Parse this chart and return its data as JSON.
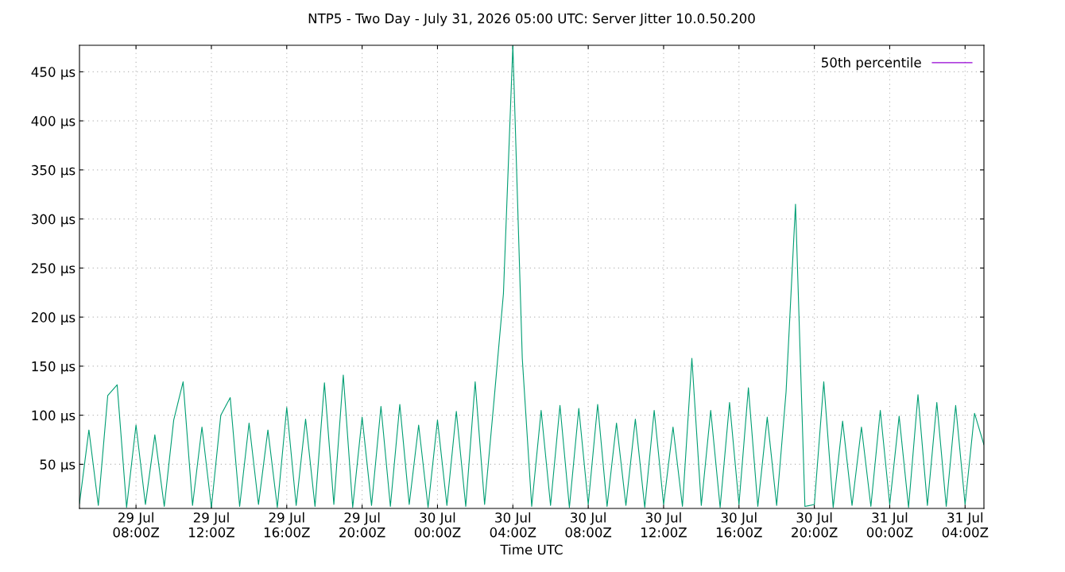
{
  "chart_data": {
    "type": "line",
    "title": "NTP5 - Two Day - July 31, 2026 05:00 UTC: Server Jitter 10.0.50.200",
    "xlabel": "Time UTC",
    "x": [
      "2026-07-29T05:00",
      "2026-07-29T05:30",
      "2026-07-29T06:00",
      "2026-07-29T06:30",
      "2026-07-29T07:00",
      "2026-07-29T07:30",
      "2026-07-29T08:00",
      "2026-07-29T08:30",
      "2026-07-29T09:00",
      "2026-07-29T09:30",
      "2026-07-29T10:00",
      "2026-07-29T10:30",
      "2026-07-29T11:00",
      "2026-07-29T11:30",
      "2026-07-29T12:00",
      "2026-07-29T12:30",
      "2026-07-29T13:00",
      "2026-07-29T13:30",
      "2026-07-29T14:00",
      "2026-07-29T14:30",
      "2026-07-29T15:00",
      "2026-07-29T15:30",
      "2026-07-29T16:00",
      "2026-07-29T16:30",
      "2026-07-29T17:00",
      "2026-07-29T17:30",
      "2026-07-29T18:00",
      "2026-07-29T18:30",
      "2026-07-29T19:00",
      "2026-07-29T19:30",
      "2026-07-29T20:00",
      "2026-07-29T20:30",
      "2026-07-29T21:00",
      "2026-07-29T21:30",
      "2026-07-29T22:00",
      "2026-07-29T22:30",
      "2026-07-29T23:00",
      "2026-07-29T23:30",
      "2026-07-30T00:00",
      "2026-07-30T00:30",
      "2026-07-30T01:00",
      "2026-07-30T01:30",
      "2026-07-30T02:00",
      "2026-07-30T02:30",
      "2026-07-30T03:00",
      "2026-07-30T03:30",
      "2026-07-30T04:00",
      "2026-07-30T04:30",
      "2026-07-30T05:00",
      "2026-07-30T05:30",
      "2026-07-30T06:00",
      "2026-07-30T06:30",
      "2026-07-30T07:00",
      "2026-07-30T07:30",
      "2026-07-30T08:00",
      "2026-07-30T08:30",
      "2026-07-30T09:00",
      "2026-07-30T09:30",
      "2026-07-30T10:00",
      "2026-07-30T10:30",
      "2026-07-30T11:00",
      "2026-07-30T11:30",
      "2026-07-30T12:00",
      "2026-07-30T12:30",
      "2026-07-30T13:00",
      "2026-07-30T13:30",
      "2026-07-30T14:00",
      "2026-07-30T14:30",
      "2026-07-30T15:00",
      "2026-07-30T15:30",
      "2026-07-30T16:00",
      "2026-07-30T16:30",
      "2026-07-30T17:00",
      "2026-07-30T17:30",
      "2026-07-30T18:00",
      "2026-07-30T18:30",
      "2026-07-30T19:00",
      "2026-07-30T19:30",
      "2026-07-30T20:00",
      "2026-07-30T20:30",
      "2026-07-30T21:00",
      "2026-07-30T21:30",
      "2026-07-30T22:00",
      "2026-07-30T22:30",
      "2026-07-30T23:00",
      "2026-07-30T23:30",
      "2026-07-31T00:00",
      "2026-07-31T00:30",
      "2026-07-31T01:00",
      "2026-07-31T01:30",
      "2026-07-31T02:00",
      "2026-07-31T02:30",
      "2026-07-31T03:00",
      "2026-07-31T03:30",
      "2026-07-31T04:00",
      "2026-07-31T04:30",
      "2026-07-31T05:00"
    ],
    "series": [
      {
        "name": "50th percentile",
        "color": "#9400d3",
        "values": [
          null,
          null,
          null,
          null,
          null,
          null,
          null,
          null,
          null,
          null,
          null,
          null,
          null,
          null,
          null,
          null,
          null,
          null,
          null,
          null,
          null,
          null,
          null,
          null,
          null,
          null,
          null,
          null,
          null,
          null,
          null,
          null,
          null,
          null,
          null,
          null,
          null,
          null,
          null,
          null,
          null,
          null,
          null,
          null,
          null,
          null,
          null,
          null,
          null,
          null,
          null,
          null,
          null,
          null,
          null,
          null,
          null,
          null,
          null,
          null,
          null,
          null,
          null,
          null,
          null,
          null,
          null,
          null,
          null,
          null,
          null,
          null,
          null,
          null,
          null,
          null,
          null,
          null,
          null,
          null,
          null,
          null,
          null,
          null,
          null,
          null,
          null,
          null,
          null,
          null,
          null,
          null,
          null,
          null,
          null,
          null,
          null
        ]
      },
      {
        "color": "#009e73",
        "values": [
          10,
          85,
          8,
          120,
          131,
          6,
          90,
          9,
          80,
          7,
          95,
          134,
          8,
          88,
          6,
          100,
          118,
          7,
          92,
          9,
          85,
          6,
          108,
          8,
          96,
          7,
          133,
          9,
          141,
          6,
          98,
          8,
          109,
          7,
          111,
          9,
          90,
          6,
          95,
          8,
          104,
          7,
          134,
          9,
          115,
          224,
          477,
          158,
          7,
          105,
          8,
          110,
          6,
          107,
          9,
          111,
          7,
          92,
          8,
          96,
          6,
          105,
          9,
          88,
          7,
          158,
          8,
          105,
          6,
          113,
          9,
          128,
          7,
          98,
          8,
          124,
          315,
          7,
          9,
          134,
          6,
          94,
          8,
          88,
          7,
          105,
          9,
          99,
          6,
          121,
          8,
          113,
          7,
          110,
          9,
          102,
          70
        ]
      }
    ],
    "xlim": [
      "2026-07-29T05:00",
      "2026-07-31T05:00"
    ],
    "xticks": [
      {
        "value": "2026-07-29T08:00",
        "label": "29 Jul\n08:00Z"
      },
      {
        "value": "2026-07-29T12:00",
        "label": "29 Jul\n12:00Z"
      },
      {
        "value": "2026-07-29T16:00",
        "label": "29 Jul\n16:00Z"
      },
      {
        "value": "2026-07-29T20:00",
        "label": "29 Jul\n20:00Z"
      },
      {
        "value": "2026-07-30T00:00",
        "label": "30 Jul\n00:00Z"
      },
      {
        "value": "2026-07-30T04:00",
        "label": "30 Jul\n04:00Z"
      },
      {
        "value": "2026-07-30T08:00",
        "label": "30 Jul\n08:00Z"
      },
      {
        "value": "2026-07-30T12:00",
        "label": "30 Jul\n12:00Z"
      },
      {
        "value": "2026-07-30T16:00",
        "label": "30 Jul\n16:00Z"
      },
      {
        "value": "2026-07-30T20:00",
        "label": "30 Jul\n20:00Z"
      },
      {
        "value": "2026-07-31T00:00",
        "label": "31 Jul\n00:00Z"
      },
      {
        "value": "2026-07-31T04:00",
        "label": "31 Jul\n04:00Z"
      }
    ],
    "ylim": [
      5,
      477
    ],
    "yticks": [
      {
        "value": 50,
        "label": "50 µs"
      },
      {
        "value": 100,
        "label": "100 µs"
      },
      {
        "value": 150,
        "label": "150 µs"
      },
      {
        "value": 200,
        "label": "200 µs"
      },
      {
        "value": 250,
        "label": "250 µs"
      },
      {
        "value": 300,
        "label": "300 µs"
      },
      {
        "value": 350,
        "label": "350 µs"
      },
      {
        "value": 400,
        "label": "400 µs"
      },
      {
        "value": 450,
        "label": "450 µs"
      }
    ],
    "grid": true,
    "legend": "top right",
    "line_style": "solid",
    "marker": "none"
  }
}
